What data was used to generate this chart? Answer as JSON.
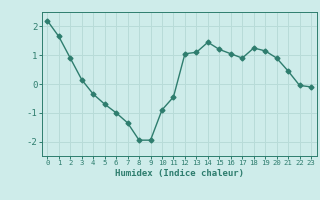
{
  "x": [
    0,
    1,
    2,
    3,
    4,
    5,
    6,
    7,
    8,
    9,
    10,
    11,
    12,
    13,
    14,
    15,
    16,
    17,
    18,
    19,
    20,
    21,
    22,
    23
  ],
  "y": [
    2.2,
    1.65,
    0.9,
    0.15,
    -0.35,
    -0.7,
    -1.0,
    -1.35,
    -1.95,
    -1.95,
    -0.9,
    -0.45,
    1.05,
    1.1,
    1.45,
    1.2,
    1.05,
    0.9,
    1.25,
    1.15,
    0.9,
    0.45,
    -0.05,
    -0.1
  ],
  "line_color": "#2e7d6e",
  "bg_color": "#ceecea",
  "grid_color": "#b8dbd8",
  "text_color": "#2e7d6e",
  "xlabel": "Humidex (Indice chaleur)",
  "ylim": [
    -2.5,
    2.5
  ],
  "xlim": [
    -0.5,
    23.5
  ],
  "yticks": [
    -2,
    -1,
    0,
    1,
    2
  ],
  "xticks": [
    0,
    1,
    2,
    3,
    4,
    5,
    6,
    7,
    8,
    9,
    10,
    11,
    12,
    13,
    14,
    15,
    16,
    17,
    18,
    19,
    20,
    21,
    22,
    23
  ],
  "marker": "D",
  "markersize": 2.5,
  "linewidth": 1.0
}
